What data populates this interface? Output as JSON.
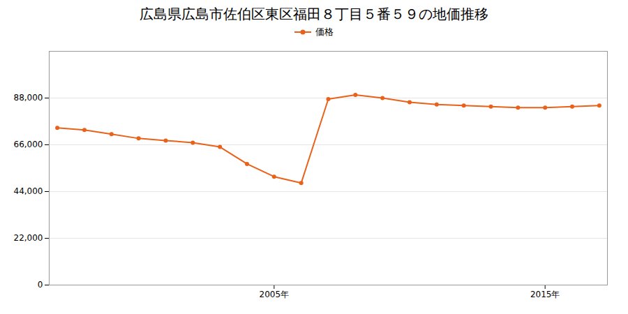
{
  "chart_data": {
    "type": "line",
    "title": "広島県広島市佐伯区東区福田８丁目５番５９の地価推移",
    "x": [
      1997,
      1998,
      1999,
      2000,
      2001,
      2002,
      2003,
      2004,
      2005,
      2006,
      2007,
      2008,
      2009,
      2010,
      2011,
      2012,
      2013,
      2014,
      2015,
      2016,
      2017
    ],
    "series": [
      {
        "name": "価格",
        "color": "#e8621a",
        "marker": "circle",
        "values": [
          74000,
          73000,
          71000,
          69000,
          68000,
          67000,
          65000,
          57000,
          51000,
          48000,
          87500,
          89500,
          88000,
          86000,
          85000,
          84500,
          84000,
          83500,
          83500,
          84000,
          84500
        ]
      }
    ],
    "xlim": [
      1996.7,
      2017.3
    ],
    "xticks": [
      {
        "value": 2005,
        "label": "2005年"
      },
      {
        "value": 2015,
        "label": "2015年"
      }
    ],
    "ylim": [
      0,
      110000
    ],
    "yticks": [
      0,
      {
        "value": 22000,
        "label": "22,000"
      },
      {
        "value": 44000,
        "label": "44,000"
      },
      {
        "value": 66000,
        "label": "66,000"
      },
      {
        "value": 88000,
        "label": "88,000"
      }
    ],
    "grid": true,
    "legend": "top"
  }
}
